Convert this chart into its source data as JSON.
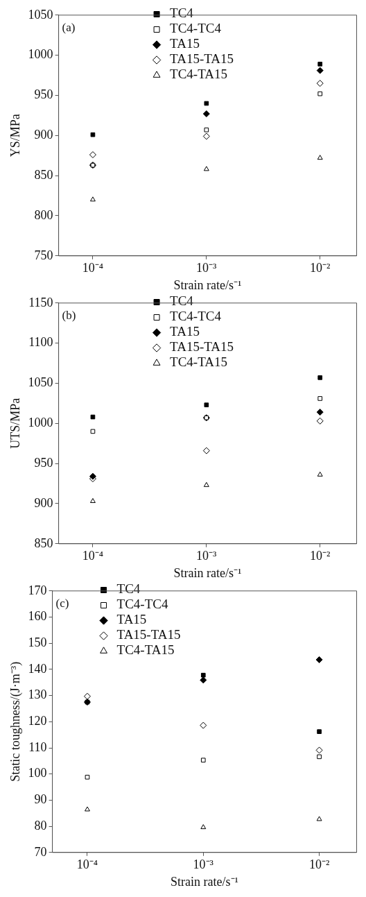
{
  "chart_data": [
    {
      "type": "scatter",
      "annotations": [
        "(a)"
      ],
      "xlabel": "Strain rate/s⁻¹",
      "ylabel": "YS/MPa",
      "log": "x",
      "grid": false,
      "legend": "top",
      "x": [
        0.0001,
        0.001,
        0.01
      ],
      "xlim": [
        5e-05,
        0.021
      ],
      "xticks": [
        {
          "value": 0.0001,
          "label": "10⁻⁴"
        },
        {
          "value": 0.001,
          "label": "10⁻³"
        },
        {
          "value": 0.01,
          "label": "10⁻²"
        }
      ],
      "ylim": [
        750,
        1050
      ],
      "yticks": [
        750,
        800,
        850,
        900,
        950,
        1000,
        1050
      ],
      "series": [
        {
          "name": "TC4",
          "color": "#000000",
          "marker": "square",
          "values": [
            901,
            940,
            989
          ]
        },
        {
          "name": "TC4-TC4",
          "color": "#ffffff",
          "marker": "square",
          "values": [
            863,
            907,
            952
          ]
        },
        {
          "name": "TA15",
          "color": "#000000",
          "marker": "diamond",
          "values": [
            863,
            927,
            981
          ]
        },
        {
          "name": "TA15-TA15",
          "color": "#ffffff",
          "marker": "diamond",
          "values": [
            876,
            899,
            965
          ]
        },
        {
          "name": "TC4-TA15",
          "color": "#ffffff",
          "marker": "triangle",
          "values": [
            820,
            858,
            872
          ]
        }
      ]
    },
    {
      "type": "scatter",
      "annotations": [
        "(b)"
      ],
      "xlabel": "Strain rate/s⁻¹",
      "ylabel": "UTS/MPa",
      "log": "x",
      "grid": false,
      "legend": "top",
      "x": [
        0.0001,
        0.001,
        0.01
      ],
      "xlim": [
        5e-05,
        0.021
      ],
      "xticks": [
        {
          "value": 0.0001,
          "label": "10⁻⁴"
        },
        {
          "value": 0.001,
          "label": "10⁻³"
        },
        {
          "value": 0.01,
          "label": "10⁻²"
        }
      ],
      "ylim": [
        850,
        1150
      ],
      "yticks": [
        850,
        900,
        950,
        1000,
        1050,
        1100,
        1150
      ],
      "series": [
        {
          "name": "TC4",
          "color": "#000000",
          "marker": "square",
          "values": [
            1008,
            1023,
            1057
          ]
        },
        {
          "name": "TC4-TC4",
          "color": "#ffffff",
          "marker": "square",
          "values": [
            990,
            1007,
            1031
          ]
        },
        {
          "name": "TA15",
          "color": "#000000",
          "marker": "diamond",
          "values": [
            934,
            1007,
            1014
          ]
        },
        {
          "name": "TA15-TA15",
          "color": "#ffffff",
          "marker": "diamond",
          "values": [
            931,
            966,
            1003
          ]
        },
        {
          "name": "TC4-TA15",
          "color": "#ffffff",
          "marker": "triangle",
          "values": [
            903,
            923,
            936
          ]
        }
      ]
    },
    {
      "type": "scatter",
      "annotations": [
        "(c)"
      ],
      "xlabel": "Strain rate/s⁻¹",
      "ylabel": "Static toughness/(J·m⁻³)",
      "log": "x",
      "grid": false,
      "legend": "top left",
      "x": [
        0.0001,
        0.001,
        0.01
      ],
      "xlim": [
        5e-05,
        0.021
      ],
      "xticks": [
        {
          "value": 0.0001,
          "label": "10⁻⁴"
        },
        {
          "value": 0.001,
          "label": "10⁻³"
        },
        {
          "value": 0.01,
          "label": "10⁻²"
        }
      ],
      "ylim": [
        70,
        170
      ],
      "yticks": [
        70,
        80,
        90,
        100,
        110,
        120,
        130,
        140,
        150,
        160,
        170
      ],
      "series": [
        {
          "name": "TC4",
          "color": "#000000",
          "marker": "square",
          "values": [
            127.5,
            137.8,
            116.2
          ]
        },
        {
          "name": "TC4-TC4",
          "color": "#ffffff",
          "marker": "square",
          "values": [
            98.8,
            105.3,
            106.6
          ]
        },
        {
          "name": "TA15",
          "color": "#000000",
          "marker": "diamond",
          "values": [
            127.5,
            135.9,
            143.7
          ]
        },
        {
          "name": "TA15-TA15",
          "color": "#ffffff",
          "marker": "diamond",
          "values": [
            129.7,
            118.6,
            109.1
          ]
        },
        {
          "name": "TC4-TA15",
          "color": "#ffffff",
          "marker": "triangle",
          "values": [
            86.4,
            79.6,
            82.7
          ]
        }
      ]
    }
  ]
}
